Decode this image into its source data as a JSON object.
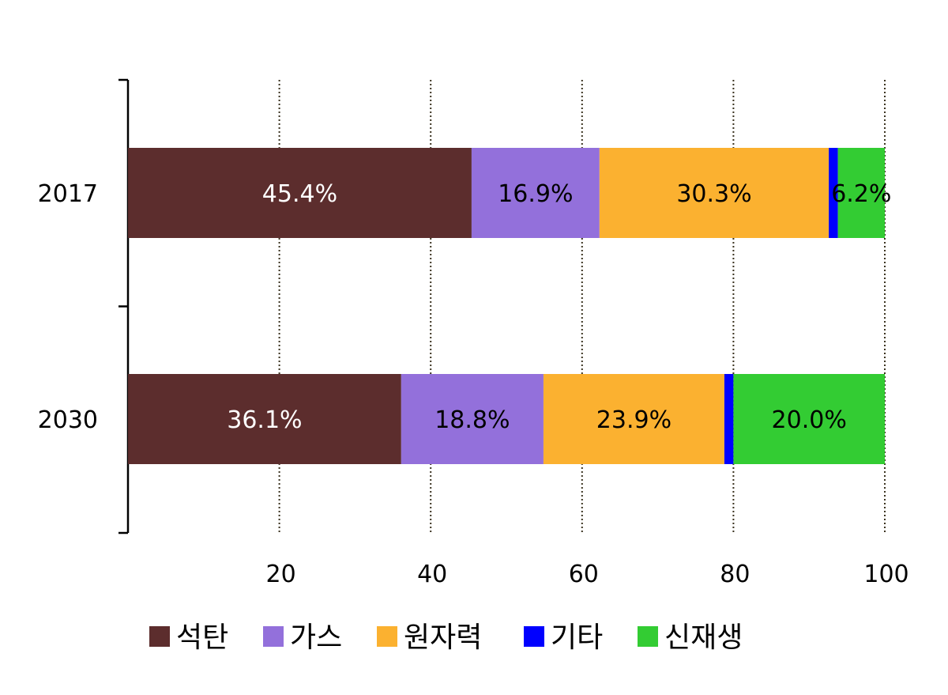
{
  "chart_data": {
    "type": "bar",
    "orientation": "horizontal",
    "stacked": true,
    "categories": [
      "2017",
      "2030"
    ],
    "series": [
      {
        "name": "석탄",
        "color": "#5C2D2D",
        "label_color": "#FFFFFF",
        "values": [
          45.4,
          36.1
        ],
        "labels": [
          "45.4%",
          "36.1%"
        ]
      },
      {
        "name": "가스",
        "color": "#9370DB",
        "label_color": "#000000",
        "values": [
          16.9,
          18.8
        ],
        "labels": [
          "16.9%",
          "18.8%"
        ]
      },
      {
        "name": "원자력",
        "color": "#FBB130",
        "label_color": "#000000",
        "values": [
          30.3,
          23.9
        ],
        "labels": [
          "30.3%",
          "23.9%"
        ]
      },
      {
        "name": "기타",
        "color": "#0000FF",
        "label_color": "#000000",
        "values": [
          1.2,
          1.2
        ],
        "labels": [
          "",
          ""
        ]
      },
      {
        "name": "신재생",
        "color": "#33CC33",
        "label_color": "#000000",
        "values": [
          6.2,
          20.0
        ],
        "labels": [
          "6.2%",
          "20.0%"
        ]
      }
    ],
    "x_ticks": [
      "20",
      "40",
      "60",
      "80",
      "100"
    ],
    "xlim": [
      0,
      100
    ],
    "grid": "vertical dotted",
    "legend_position": "bottom"
  }
}
